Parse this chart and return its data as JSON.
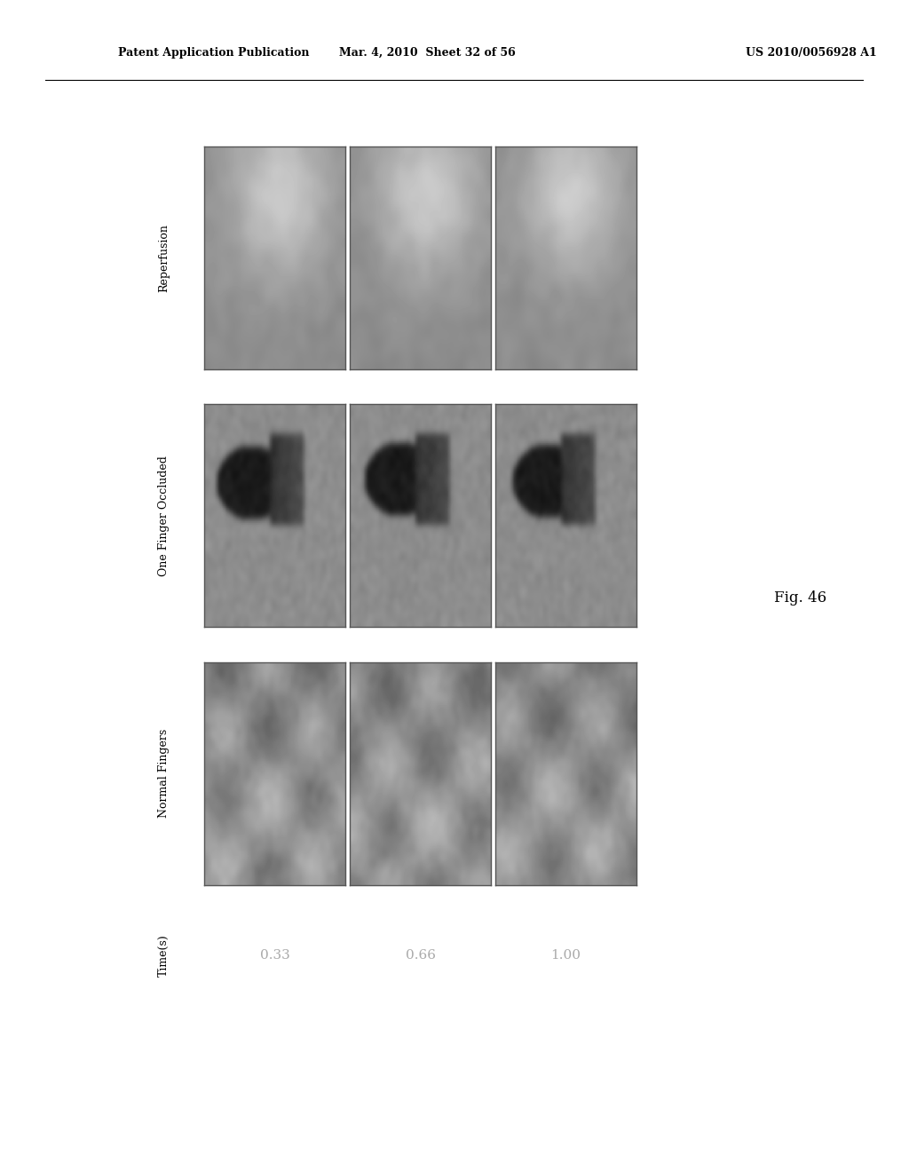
{
  "title_left": "Patent Application Publication",
  "title_center": "Mar. 4, 2010  Sheet 32 of 56",
  "title_right": "US 2010/0056928 A1",
  "fig_label": "Fig. 46",
  "row_labels": [
    "Reperfusion",
    "One Finger Occluded",
    "Normal Fingers"
  ],
  "time_labels": [
    "0.33",
    "0.66",
    "1.00"
  ],
  "time_label_header": "Time(s)",
  "background_color": "#ffffff",
  "grid_bg": "#e8e8e8",
  "border_color": "#aaaaaa",
  "text_color": "#000000",
  "gray_label_color": "#999999"
}
